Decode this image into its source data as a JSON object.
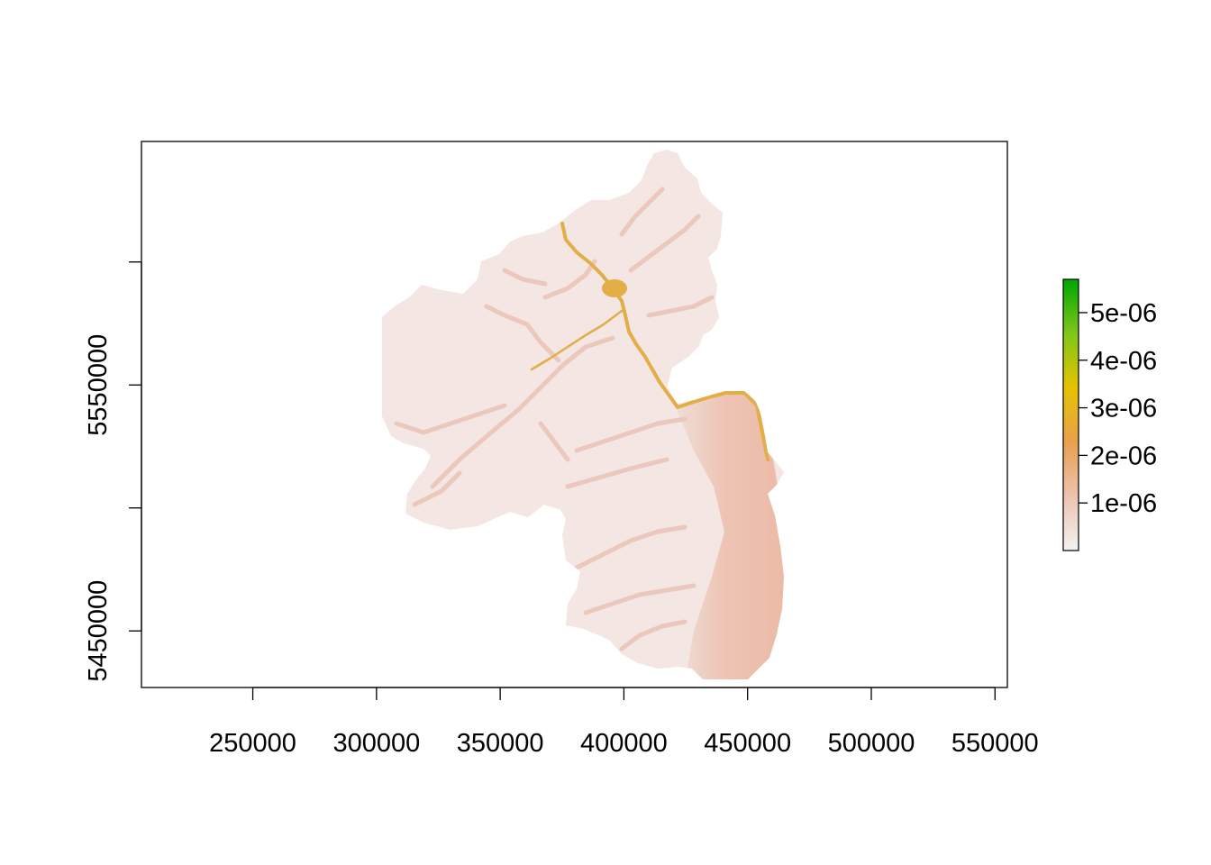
{
  "chart_data": {
    "type": "heatmap",
    "title": "",
    "xlabel": "",
    "ylabel": "",
    "xlim": [
      205000,
      555000
    ],
    "ylim": [
      5427000,
      5649000
    ],
    "x_ticks": [
      {
        "value": 250000,
        "label": "250000"
      },
      {
        "value": 300000,
        "label": "300000"
      },
      {
        "value": 350000,
        "label": "350000"
      },
      {
        "value": 400000,
        "label": "400000"
      },
      {
        "value": 450000,
        "label": "450000"
      },
      {
        "value": 500000,
        "label": "500000"
      },
      {
        "value": 550000,
        "label": "550000"
      }
    ],
    "y_ticks": [
      {
        "value": 5600000,
        "label": ""
      },
      {
        "value": 5550000,
        "label": "5550000"
      },
      {
        "value": 5500000,
        "label": ""
      },
      {
        "value": 5450000,
        "label": "5450000"
      }
    ],
    "legend": {
      "placement": "right",
      "range": [
        0,
        5.7e-06
      ],
      "colors": [
        "#f2f2f2",
        "#edc3b0",
        "#e8a04d",
        "#e6c300",
        "#7fc61b",
        "#00a600"
      ],
      "ticks": [
        {
          "value": 1e-06,
          "label": "1e-06"
        },
        {
          "value": 2e-06,
          "label": "2e-06"
        },
        {
          "value": 3e-06,
          "label": "3e-06"
        },
        {
          "value": 4e-06,
          "label": "4e-06"
        },
        {
          "value": 5e-06,
          "label": "5e-06"
        }
      ]
    },
    "raster_colors": {
      "background": "#f3e6e3",
      "valleys": "#ecc8bc",
      "east_zone": "#edbba7",
      "river": "#e3ad47"
    }
  }
}
